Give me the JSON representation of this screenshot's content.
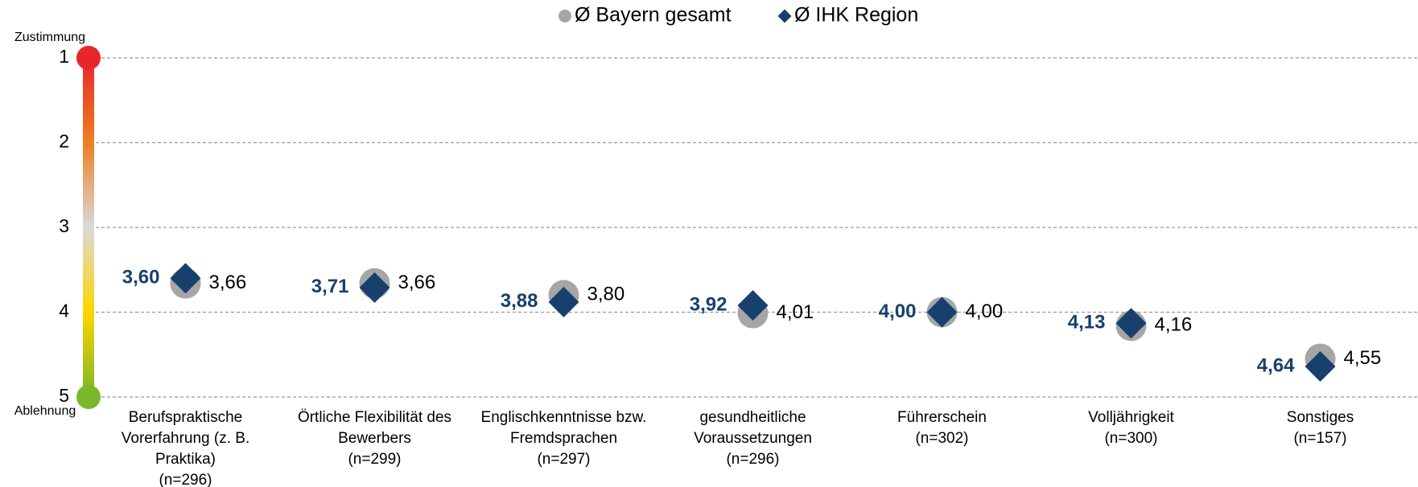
{
  "chart_data": {
    "type": "dot",
    "y_top_label": "Zustimmung",
    "y_bottom_label": "Ablehnung",
    "categories": [
      [
        "Berufspraktische",
        "Vorerfahrung (z. B.",
        "Praktika)",
        "(n=296)"
      ],
      [
        "Örtliche Flexibilität des",
        "Bewerbers",
        "(n=299)"
      ],
      [
        "Englischkenntnisse bzw.",
        "Fremdsprachen",
        "(n=297)"
      ],
      [
        "gesundheitliche",
        "Voraussetzungen",
        "(n=296)"
      ],
      [
        "Führerschein",
        "(n=302)"
      ],
      [
        "Volljährigkeit",
        "(n=300)"
      ],
      [
        "Sonstiges",
        "(n=157)"
      ]
    ],
    "series": [
      {
        "name": "Ø Bayern gesamt",
        "color": "#a6a6a6",
        "marker": "circle",
        "values": [
          3.66,
          3.66,
          3.8,
          4.01,
          4.0,
          4.16,
          4.55
        ],
        "value_labels": [
          "3,66",
          "3,66",
          "3,80",
          "4,01",
          "4,00",
          "4,16",
          "4,55"
        ]
      },
      {
        "name": "Ø IHK Region",
        "color": "#17406d",
        "marker": "diamond",
        "values": [
          3.6,
          3.71,
          3.88,
          3.92,
          4.0,
          4.13,
          4.64
        ],
        "value_labels": [
          "3,60",
          "3,71",
          "3,88",
          "3,92",
          "4,00",
          "4,13",
          "4,64"
        ]
      }
    ],
    "ylim": [
      1,
      5
    ],
    "y_reversed": true,
    "yticks": [
      1,
      2,
      3,
      4,
      5
    ],
    "grid": true
  }
}
